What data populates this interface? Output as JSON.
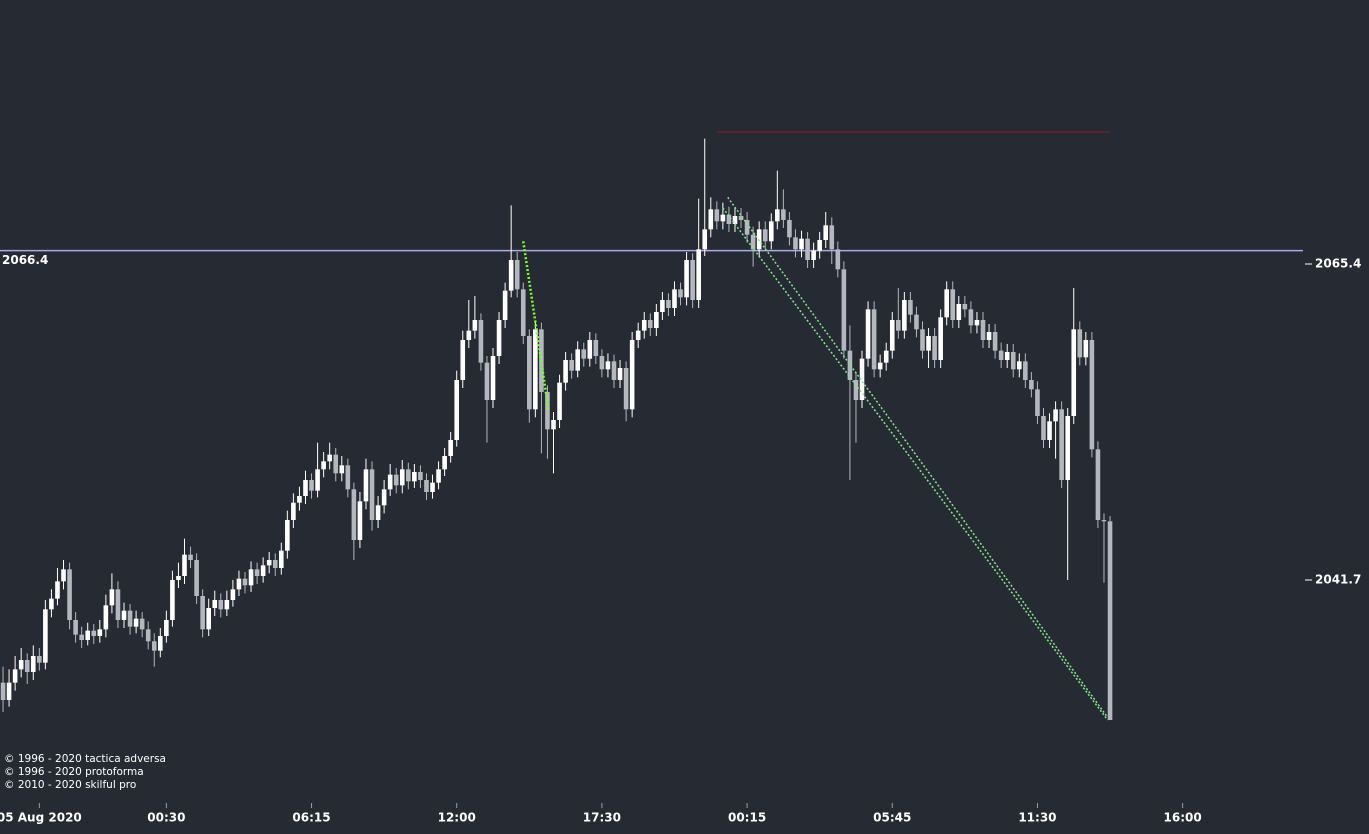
{
  "chart_data": {
    "type": "candlestick",
    "xlim": [
      -0.5,
      214.9
    ],
    "ylim": [
      2025.2,
      2085.2
    ],
    "yticks": [
      2065.4,
      2041.7
    ],
    "xticks": [
      {
        "value": 6,
        "label": "05 Aug 2020"
      },
      {
        "value": 27,
        "label": "00:30"
      },
      {
        "value": 51,
        "label": "06:15"
      },
      {
        "value": 75,
        "label": "12:00"
      },
      {
        "value": 99,
        "label": "17:30"
      },
      {
        "value": 123,
        "label": "00:15"
      },
      {
        "value": 147,
        "label": "05:45"
      },
      {
        "value": 171,
        "label": "11:30"
      },
      {
        "value": 195,
        "label": "16:00"
      }
    ],
    "series": [
      {
        "up_color": "#ffffff",
        "down_color": "#b4b7be",
        "open": [
          2034.0,
          2032.7,
          2034.0,
          2035.0,
          2035.7,
          2034.8,
          2036.0,
          2035.5,
          2039.5,
          2040.3,
          2041.6,
          2042.5,
          2038.7,
          2037.6,
          2037.2,
          2037.9,
          2037.5,
          2038.0,
          2039.8,
          2041.0,
          2038.7,
          2039.4,
          2038.2,
          2038.8,
          2038.0,
          2037.1,
          2036.4,
          2037.5,
          2038.7,
          2041.7,
          2042.0,
          2043.6,
          2043.2,
          2040.5,
          2038.0,
          2039.6,
          2040.2,
          2039.5,
          2040.2,
          2041.0,
          2041.8,
          2041.3,
          2042.5,
          2042.0,
          2042.8,
          2043.2,
          2042.6,
          2043.9,
          2046.2,
          2047.5,
          2048.0,
          2049.2,
          2048.4,
          2050.0,
          2050.6,
          2051.1,
          2049.7,
          2050.3,
          2048.5,
          2044.7,
          2047.6,
          2050.0,
          2046.2,
          2047.3,
          2048.5,
          2049.6,
          2048.8,
          2050.0,
          2049.1,
          2049.8,
          2049.2,
          2048.3,
          2049.0,
          2050.0,
          2051.0,
          2052.2,
          2056.7,
          2059.7,
          2060.4,
          2061.2,
          2058.0,
          2055.2,
          2058.5,
          2061.2,
          2063.4,
          2065.7,
          2063.5,
          2060.0,
          2054.5,
          2060.5,
          2055.8,
          2053.0,
          2053.7,
          2056.5,
          2058.2,
          2057.4,
          2059.0,
          2058.3,
          2059.7,
          2058.5,
          2057.5,
          2058.1,
          2056.7,
          2057.6,
          2054.5,
          2059.7,
          2060.4,
          2061.2,
          2060.6,
          2061.8,
          2062.7,
          2062.1,
          2063.5,
          2062.9,
          2065.7,
          2062.7,
          2066.5,
          2068.0,
          2069.5,
          2068.6,
          2069.1,
          2068.4,
          2069.0,
          2068.7,
          2067.6,
          2066.5,
          2068.0,
          2067.1,
          2068.6,
          2069.5,
          2068.7,
          2067.4,
          2066.5,
          2067.3,
          2065.7,
          2066.4,
          2067.2,
          2068.3,
          2066.5,
          2065.0,
          2058.9,
          2056.7,
          2055.2,
          2058.3,
          2062.0,
          2057.5,
          2058.0,
          2058.9,
          2061.2,
          2060.4,
          2062.7,
          2061.6,
          2060.5,
          2058.9,
          2060.0,
          2058.2,
          2061.4,
          2063.5,
          2061.2,
          2062.4,
          2062.0,
          2060.8,
          2061.2,
          2059.7,
          2060.3,
          2058.9,
          2058.2,
          2058.8,
          2057.5,
          2058.1,
          2056.7,
          2056.0,
          2054.0,
          2052.2,
          2053.6,
          2054.5,
          2049.2,
          2054.0,
          2060.5,
          2058.4,
          2059.7,
          2051.5,
          2046.2,
          2046.1
        ],
        "high": [
          2035.2,
          2035.0,
          2036.0,
          2036.6,
          2036.2,
          2036.8,
          2036.6,
          2040.2,
          2041.0,
          2042.6,
          2043.2,
          2043.0,
          2039.3,
          2038.2,
          2038.5,
          2038.4,
          2038.7,
          2040.6,
          2042.2,
          2041.6,
          2040.0,
          2039.9,
          2039.4,
          2039.3,
          2038.6,
          2037.7,
          2038.1,
          2039.4,
          2042.4,
          2043.0,
          2044.8,
          2044.2,
          2043.7,
          2041.0,
          2040.3,
          2040.9,
          2040.7,
          2040.9,
          2041.7,
          2042.4,
          2042.3,
          2043.1,
          2043.0,
          2043.4,
          2043.8,
          2043.7,
          2044.5,
          2046.9,
          2048.2,
          2048.7,
          2049.9,
          2049.7,
          2052.0,
          2051.3,
          2052.0,
          2051.6,
          2051.0,
          2050.8,
          2049.0,
          2048.3,
          2050.8,
          2050.6,
          2048.0,
          2049.2,
          2050.4,
          2050.1,
          2050.7,
          2050.5,
          2050.4,
          2050.3,
          2049.7,
          2049.6,
          2050.6,
          2051.6,
          2052.8,
          2057.4,
          2060.4,
          2062.7,
          2063.0,
          2061.7,
          2058.5,
          2059.1,
          2061.8,
          2064.0,
          2069.8,
          2066.3,
          2064.0,
          2060.5,
          2061.1,
          2061.0,
          2056.3,
          2054.3,
          2057.1,
          2058.8,
          2058.7,
          2059.6,
          2059.5,
          2060.3,
          2060.2,
          2059.0,
          2058.7,
          2058.6,
          2058.2,
          2058.1,
          2060.3,
          2061.0,
          2061.8,
          2061.7,
          2062.4,
          2063.3,
          2063.2,
          2064.1,
          2064.0,
          2066.3,
          2066.2,
          2070.3,
          2074.8,
          2070.4,
          2070.1,
          2070.0,
          2069.7,
          2069.6,
          2069.6,
          2069.3,
          2068.2,
          2068.6,
          2068.6,
          2069.2,
          2072.4,
          2071.0,
          2069.3,
          2068.0,
          2067.9,
          2067.8,
          2067.0,
          2067.8,
          2069.3,
          2068.9,
          2067.1,
          2065.6,
          2060.8,
          2057.3,
          2058.9,
          2062.6,
          2062.6,
          2058.6,
          2059.5,
          2061.8,
          2063.6,
          2063.3,
          2063.3,
          2062.2,
          2061.1,
          2060.6,
          2060.6,
          2062.0,
          2064.1,
          2064.1,
          2063.0,
          2063.0,
          2062.6,
          2061.8,
          2061.8,
          2060.9,
          2060.9,
          2059.5,
          2059.4,
          2059.4,
          2058.7,
          2058.7,
          2057.3,
          2056.6,
          2054.6,
          2054.2,
          2055.1,
          2055.1,
          2054.6,
          2063.6,
          2061.1,
          2060.3,
          2060.3,
          2052.1,
          2046.7,
          2046.5
        ],
        "low": [
          2031.8,
          2032.2,
          2033.4,
          2034.4,
          2033.9,
          2034.2,
          2034.9,
          2035.0,
          2038.9,
          2039.8,
          2041.0,
          2038.0,
          2037.0,
          2036.6,
          2036.8,
          2036.9,
          2037.0,
          2037.4,
          2039.2,
          2038.1,
          2038.1,
          2037.6,
          2037.7,
          2037.4,
          2036.5,
          2035.2,
          2035.9,
          2037.0,
          2038.2,
          2041.1,
          2041.4,
          2042.6,
          2039.9,
          2037.4,
          2037.5,
          2039.0,
          2038.9,
          2039.0,
          2039.7,
          2040.5,
          2040.7,
          2040.8,
          2041.4,
          2041.5,
          2042.2,
          2042.0,
          2042.1,
          2043.3,
          2045.6,
          2046.9,
          2047.4,
          2047.8,
          2047.9,
          2049.4,
          2050.0,
          2049.1,
          2049.1,
          2047.9,
          2043.2,
          2044.1,
          2047.0,
          2045.4,
          2045.6,
          2046.7,
          2048.0,
          2048.2,
          2048.2,
          2048.5,
          2048.6,
          2048.6,
          2047.7,
          2047.8,
          2048.5,
          2049.5,
          2050.5,
          2051.7,
          2056.1,
          2059.1,
          2059.8,
          2057.4,
          2052.0,
          2054.6,
          2057.9,
          2060.6,
          2062.9,
          2062.9,
          2059.4,
          2053.5,
          2053.9,
          2051.2,
          2050.8,
          2049.7,
          2053.1,
          2055.9,
          2056.8,
          2056.9,
          2057.7,
          2057.7,
          2057.9,
          2056.9,
          2056.9,
          2056.1,
          2056.1,
          2053.6,
          2053.9,
          2059.1,
          2059.8,
          2060.0,
          2060.0,
          2061.2,
          2061.5,
          2061.5,
          2062.3,
          2062.3,
          2062.1,
          2062.1,
          2066.0,
          2067.4,
          2068.0,
          2068.0,
          2067.8,
          2067.8,
          2068.1,
          2067.0,
          2065.2,
          2065.9,
          2066.5,
          2066.5,
          2068.0,
          2068.1,
          2066.8,
          2065.9,
          2065.9,
          2065.1,
          2065.1,
          2065.8,
          2066.6,
          2065.4,
          2064.4,
          2058.3,
          2049.2,
          2052.0,
          2054.6,
          2057.7,
          2056.9,
          2056.9,
          2057.4,
          2058.3,
          2059.8,
          2059.8,
          2061.0,
          2059.9,
          2058.3,
          2057.6,
          2057.6,
          2057.6,
          2060.8,
          2060.6,
          2060.6,
          2061.4,
          2060.2,
          2060.2,
          2059.1,
          2059.1,
          2058.3,
          2057.6,
          2057.6,
          2056.9,
          2056.9,
          2056.1,
          2055.4,
          2053.4,
          2051.6,
          2051.6,
          2050.8,
          2048.6,
          2041.7,
          2053.4,
          2057.8,
          2057.8,
          2050.9,
          2045.6,
          2041.5,
          2031.2
        ],
        "close": [
          2032.7,
          2034.0,
          2035.0,
          2035.7,
          2034.8,
          2036.0,
          2035.5,
          2039.5,
          2040.3,
          2041.6,
          2042.5,
          2038.7,
          2037.6,
          2037.2,
          2037.9,
          2037.5,
          2038.0,
          2039.8,
          2041.0,
          2038.7,
          2039.4,
          2038.2,
          2038.8,
          2038.0,
          2037.1,
          2036.4,
          2037.5,
          2038.7,
          2041.7,
          2042.0,
          2043.6,
          2043.2,
          2040.5,
          2038.0,
          2039.6,
          2040.2,
          2039.5,
          2040.2,
          2041.0,
          2041.8,
          2041.3,
          2042.5,
          2042.0,
          2042.8,
          2043.2,
          2042.6,
          2043.9,
          2046.2,
          2047.5,
          2048.0,
          2049.2,
          2048.4,
          2050.0,
          2050.6,
          2051.1,
          2049.7,
          2050.3,
          2048.5,
          2044.7,
          2047.6,
          2050.0,
          2046.2,
          2047.3,
          2048.5,
          2049.6,
          2048.8,
          2050.0,
          2049.1,
          2049.8,
          2049.2,
          2048.3,
          2049.0,
          2050.0,
          2051.0,
          2052.2,
          2056.7,
          2059.7,
          2060.4,
          2061.2,
          2058.0,
          2055.2,
          2058.5,
          2061.2,
          2063.4,
          2065.7,
          2063.5,
          2060.0,
          2054.5,
          2060.5,
          2055.8,
          2053.0,
          2053.7,
          2056.5,
          2058.2,
          2057.4,
          2059.0,
          2058.3,
          2059.7,
          2058.5,
          2057.5,
          2058.1,
          2056.7,
          2057.6,
          2054.5,
          2059.7,
          2060.4,
          2061.2,
          2060.6,
          2061.8,
          2062.7,
          2062.1,
          2063.5,
          2062.9,
          2065.7,
          2062.7,
          2066.5,
          2068.0,
          2069.5,
          2068.6,
          2069.1,
          2068.4,
          2069.0,
          2068.7,
          2067.6,
          2066.5,
          2068.0,
          2067.1,
          2068.6,
          2069.5,
          2068.7,
          2067.4,
          2066.5,
          2067.3,
          2065.7,
          2066.4,
          2067.2,
          2068.3,
          2066.5,
          2065.0,
          2058.9,
          2056.7,
          2055.2,
          2058.3,
          2062.0,
          2057.5,
          2058.0,
          2058.9,
          2061.2,
          2060.4,
          2062.7,
          2061.6,
          2060.5,
          2058.9,
          2060.0,
          2058.2,
          2061.4,
          2063.5,
          2061.2,
          2062.4,
          2062.0,
          2060.8,
          2061.2,
          2059.7,
          2060.3,
          2058.9,
          2058.2,
          2058.8,
          2057.5,
          2058.1,
          2056.7,
          2056.0,
          2054.0,
          2052.2,
          2053.6,
          2054.5,
          2049.2,
          2054.0,
          2060.5,
          2058.4,
          2059.7,
          2051.5,
          2046.2,
          2046.1,
          2031.2
        ]
      }
    ],
    "price_line": {
      "value": 2066.4,
      "color": "#a9abe8"
    },
    "level_line": {
      "x": [
        118,
        183
      ],
      "value": 2075.3,
      "color": "#5a2228"
    },
    "trendlines": [
      {
        "x": [
          86,
          90.2
        ],
        "y": [
          2067.1,
          2054.4
        ],
        "color": "#7dff2b",
        "width": 2.5
      },
      {
        "x": [
          119.8,
          182.6
        ],
        "y": [
          2070.4,
          2031.4
        ],
        "color": "#86e68a",
        "width": 1.5
      },
      {
        "x": [
          119,
          182.6
        ],
        "y": [
          2069.6,
          2031.2
        ],
        "color": "#86e68a",
        "width": 1.5
      }
    ],
    "credits": [
      "© 1996 - 2020 tactica adversa",
      "© 1996 - 2020 protoforma",
      "© 2010 - 2020 skilful pro"
    ]
  }
}
